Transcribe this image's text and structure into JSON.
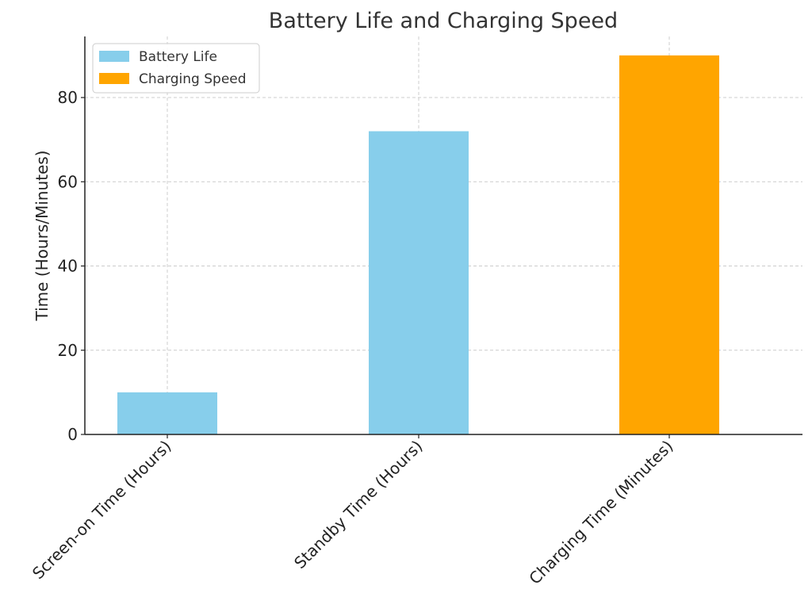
{
  "chart_data": {
    "type": "bar",
    "title": "Battery Life and Charging Speed",
    "xlabel": "",
    "ylabel": "Time (Hours/Minutes)",
    "categories": [
      "Screen-on Time (Hours)",
      "Standby Time (Hours)",
      "Charging Time (Minutes)"
    ],
    "series": [
      {
        "name": "Battery Life",
        "color": "#87CEEB",
        "values": [
          10,
          72,
          null
        ]
      },
      {
        "name": "Charging Speed",
        "color": "#FFA500",
        "values": [
          null,
          null,
          90
        ]
      }
    ],
    "ylim": [
      0,
      94.5
    ],
    "yticks": [
      0,
      20,
      40,
      60,
      80
    ],
    "grid": true,
    "legend_position": "top-left"
  }
}
